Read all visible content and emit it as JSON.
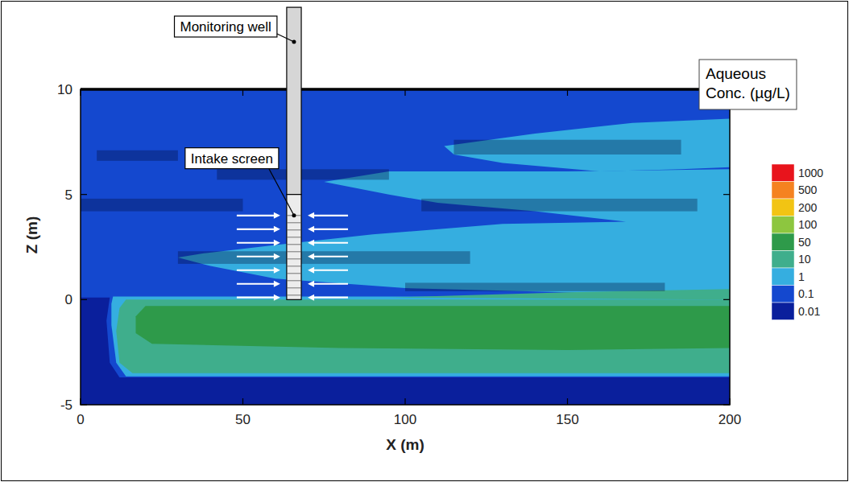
{
  "chart_data": {
    "type": "contour",
    "x_label": "X (m)",
    "y_label": "Z (m)",
    "xlim": [
      0,
      200
    ],
    "ylim": [
      -5,
      10
    ],
    "xticks": [
      0,
      50,
      100,
      150,
      200
    ],
    "yticks": [
      -5,
      0,
      5,
      10
    ],
    "colorbar": {
      "title": "Aqueous Conc. (µg/L)",
      "levels": [
        1000,
        500,
        200,
        100,
        50,
        10,
        1,
        0.1,
        0.01
      ],
      "colors": [
        "#e8141c",
        "#f58220",
        "#f2c413",
        "#8dc63f",
        "#2e9a4a",
        "#3fae8c",
        "#35aee0",
        "#1448cf",
        "#0a1f9c"
      ]
    },
    "background_level": 0.01,
    "regions": [
      {
        "level": 0.1,
        "x": [
          0,
          200,
          200,
          12,
          9,
          8,
          9,
          0
        ],
        "z": [
          10,
          10,
          -3.7,
          -3.7,
          -3,
          -1,
          0.1,
          0.1
        ]
      },
      {
        "level": 1,
        "x": [
          10,
          200,
          200,
          14,
          11,
          9.5,
          9.5
        ],
        "z": [
          0.15,
          0.15,
          -3.65,
          -3.65,
          -3,
          -1.2,
          -0.2
        ]
      },
      {
        "level": 1,
        "x": [
          112,
          140,
          170,
          200,
          200,
          185,
          160,
          130,
          115
        ],
        "z": [
          7.3,
          7.9,
          8.4,
          8.6,
          6.3,
          6.2,
          6.1,
          6.5,
          6.9
        ]
      },
      {
        "level": 1,
        "x": [
          38,
          60,
          90,
          130,
          168,
          140,
          110,
          95,
          75,
          95,
          150,
          200,
          200,
          150,
          100,
          60,
          40,
          30
        ],
        "z": [
          2.2,
          2.6,
          3.1,
          3.6,
          3.7,
          4.2,
          4.6,
          5.0,
          5.6,
          6.1,
          6.1,
          6.2,
          0.15,
          0.35,
          0.55,
          1.0,
          1.6,
          2.0
        ]
      },
      {
        "level": 10,
        "x": [
          95,
          150,
          200,
          200
        ],
        "z": [
          0.1,
          0.35,
          0.5,
          0.0
        ]
      },
      {
        "level": 10,
        "x": [
          14,
          200,
          200,
          16,
          12,
          11,
          12
        ],
        "z": [
          0,
          0,
          -3.5,
          -3.5,
          -3,
          -1.5,
          -0.4
        ]
      },
      {
        "level": 50,
        "x": [
          20,
          200,
          200,
          150,
          80,
          22,
          17,
          17
        ],
        "z": [
          -0.3,
          -0.3,
          -2.3,
          -2.4,
          -2.3,
          -2.1,
          -1.6,
          -0.8
        ]
      }
    ],
    "lenses": [
      {
        "x": [
          5,
          30
        ],
        "z": [
          6.6,
          7.1
        ]
      },
      {
        "x": [
          42,
          95
        ],
        "z": [
          5.7,
          6.2
        ]
      },
      {
        "x": [
          0,
          50
        ],
        "z": [
          4.2,
          4.8
        ]
      },
      {
        "x": [
          105,
          190
        ],
        "z": [
          4.2,
          4.8
        ]
      },
      {
        "x": [
          115,
          185
        ],
        "z": [
          6.9,
          7.6
        ]
      },
      {
        "x": [
          30,
          120
        ],
        "z": [
          1.7,
          2.3
        ]
      },
      {
        "x": [
          100,
          180
        ],
        "z": [
          0.4,
          0.8
        ]
      }
    ],
    "well": {
      "x": [
        63.5,
        68
      ],
      "top_z": 13.9,
      "screen_z": [
        0,
        5
      ]
    },
    "annotations": [
      {
        "text": "Monitoring well"
      },
      {
        "text": "Intake screen"
      }
    ]
  }
}
